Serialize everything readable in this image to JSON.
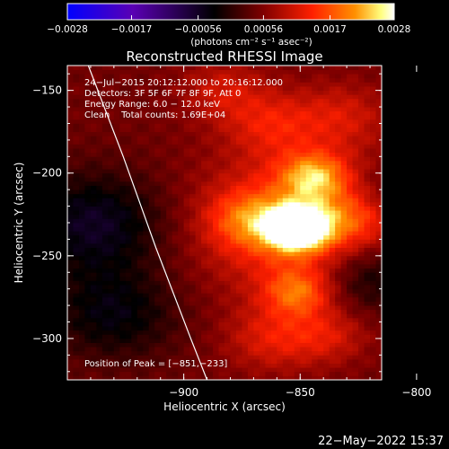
{
  "chart_data": {
    "type": "heatmap",
    "title": "Reconstructed RHESSI Image",
    "xlabel": "Heliocentric X (arcsec)",
    "ylabel": "Heliocentric Y (arcsec)",
    "xlim": [
      -950,
      -815
    ],
    "ylim": [
      -325,
      -135
    ],
    "x_ticks": [
      -900,
      -850,
      -800
    ],
    "x_tick_labels": [
      "−900",
      "−850",
      "−800"
    ],
    "y_ticks": [
      -150,
      -200,
      -250,
      -300
    ],
    "y_tick_labels": [
      "−150",
      "−200",
      "−250",
      "−300"
    ],
    "colorbar": {
      "range": [
        -0.0028,
        0.0028
      ],
      "ticks": [
        -0.0028,
        -0.0017,
        -0.00056,
        0.00056,
        0.0017,
        0.0028
      ],
      "tick_labels": [
        "−0.0028",
        "−0.0017",
        "−0.00056",
        "0.00056",
        "0.0017",
        "0.0028"
      ],
      "unit_label": "(photons cm⁻² s⁻¹ asec⁻²)",
      "colors": [
        "#0000ff",
        "#5a00b4",
        "#000000",
        "#800000",
        "#ff2000",
        "#ff9000",
        "#ffff80",
        "#ffffff"
      ]
    },
    "info_lines": [
      "24−Jul−2015 20:12:12.000 to 20:16:12.000",
      "Detectors: 3F 5F 6F 7F 8F 9F, Att 0",
      "Energy Range: 6.0 − 12.0 keV",
      "Clean    Total counts: 1.69E+04"
    ],
    "peak_label": "Position of Peak = [−851,−233]",
    "peak": [
      -851,
      -233
    ],
    "sources": [
      {
        "x": -851,
        "y": -233,
        "sigma": 9,
        "amp": 0.0028
      },
      {
        "x": -850,
        "y": -231,
        "sigma": 30,
        "amp": 0.0012
      },
      {
        "x": -844,
        "y": -202,
        "sigma": 10,
        "amp": 0.0014
      },
      {
        "x": -851,
        "y": -272,
        "sigma": 10,
        "amp": 0.0011
      },
      {
        "x": -872,
        "y": -228,
        "sigma": 12,
        "amp": 0.0009
      },
      {
        "x": -826,
        "y": -226,
        "sigma": 12,
        "amp": 0.0008
      },
      {
        "x": -862,
        "y": -170,
        "sigma": 14,
        "amp": 0.0007
      },
      {
        "x": -832,
        "y": -165,
        "sigma": 14,
        "amp": 0.0006
      },
      {
        "x": -883,
        "y": -150,
        "sigma": 13,
        "amp": 0.0006
      },
      {
        "x": -862,
        "y": -300,
        "sigma": 14,
        "amp": 0.0007
      },
      {
        "x": -838,
        "y": -298,
        "sigma": 12,
        "amp": 0.0006
      }
    ],
    "negative_regions": [
      {
        "x": -938,
        "y": -230,
        "sigma": 22,
        "amp": -0.001
      },
      {
        "x": -930,
        "y": -285,
        "sigma": 20,
        "amp": -0.0008
      },
      {
        "x": -820,
        "y": -262,
        "sigma": 16,
        "amp": -0.0009
      },
      {
        "x": -815,
        "y": -215,
        "sigma": 14,
        "amp": -0.0006
      }
    ],
    "limb_curve": [
      [
        -941,
        -135
      ],
      [
        -926,
        -190
      ],
      [
        -912,
        -245
      ],
      [
        -897,
        -300
      ],
      [
        -890,
        -325
      ]
    ]
  },
  "timestamp": "22−May−2022 15:37"
}
